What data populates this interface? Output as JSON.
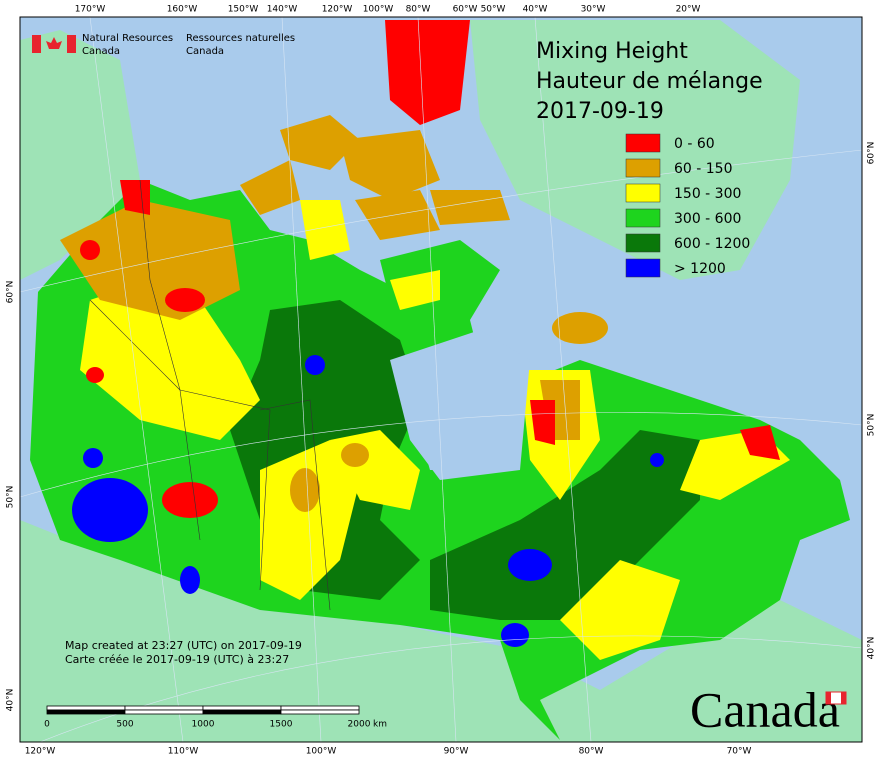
{
  "header": {
    "en_line1": "Natural Resources",
    "en_line2": "Canada",
    "fr_line1": "Ressources naturelles",
    "fr_line2": "Canada"
  },
  "title": {
    "line1": "Mixing Height",
    "line2": "Hauteur de mélange",
    "date": "2017-09-19"
  },
  "legend": {
    "items": [
      {
        "label": "0 - 60",
        "color": "#ff0000"
      },
      {
        "label": "60 - 150",
        "color": "#dda000"
      },
      {
        "label": "150 - 300",
        "color": "#ffff00"
      },
      {
        "label": "300 - 600",
        "color": "#1ed41e"
      },
      {
        "label": "600 - 1200",
        "color": "#0a780a"
      },
      {
        "label": "> 1200",
        "color": "#0000ff"
      }
    ]
  },
  "graticule": {
    "top": [
      "170°W",
      "160°W",
      "150°W",
      "140°W",
      "120°W",
      "100°W",
      "80°W",
      "60°W",
      "50°W",
      "40°W",
      "30°W",
      "20°W"
    ],
    "bottom": [
      "120°W",
      "110°W",
      "100°W",
      "90°W",
      "80°W",
      "70°W"
    ],
    "left": [
      "60°N",
      "50°N",
      "40°N"
    ],
    "right": [
      "60°N",
      "50°N",
      "40°N"
    ]
  },
  "footer": {
    "line1": "Map created at 23:27 (UTC) on 2017-09-19",
    "line2": "Carte créée le 2017-09-19 (UTC) à 23:27"
  },
  "scale_bar": {
    "labels": [
      "0",
      "500",
      "1000",
      "1500",
      "2000"
    ],
    "unit": "km"
  },
  "wordmark": "Canada"
}
